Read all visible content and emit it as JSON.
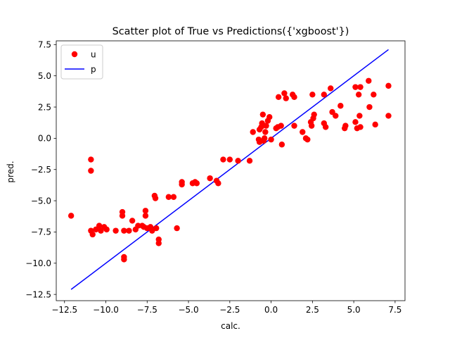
{
  "chart_data": {
    "type": "scatter",
    "title": "Scatter plot of True vs Predictions({'xgboost'})",
    "xlabel": "calc.",
    "ylabel": "pred.",
    "xlim": [
      -13.0,
      8.1
    ],
    "ylim": [
      -13.0,
      7.8
    ],
    "xticks": [
      -12.5,
      -10.0,
      -7.5,
      -5.0,
      -2.5,
      0.0,
      2.5,
      5.0,
      7.5
    ],
    "xtick_labels": [
      "−12.5",
      "−10.0",
      "−7.5",
      "−5.0",
      "−2.5",
      "0.0",
      "2.5",
      "5.0",
      "7.5"
    ],
    "yticks": [
      -12.5,
      -10.0,
      -7.5,
      -5.0,
      -2.5,
      0.0,
      2.5,
      5.0,
      7.5
    ],
    "ytick_labels": [
      "−12.5",
      "−10.0",
      "−7.5",
      "−5.0",
      "−2.5",
      "0.0",
      "2.5",
      "5.0",
      "7.5"
    ],
    "grid": false,
    "legend_position": "upper-left",
    "series": [
      {
        "name": "u",
        "kind": "scatter",
        "color": "#ff0000",
        "points": [
          [
            -12.1,
            -6.2
          ],
          [
            -10.9,
            -1.7
          ],
          [
            -10.9,
            -2.6
          ],
          [
            -10.9,
            -7.4
          ],
          [
            -10.8,
            -7.7
          ],
          [
            -10.6,
            -7.3
          ],
          [
            -10.4,
            -7.0
          ],
          [
            -10.3,
            -7.4
          ],
          [
            -10.1,
            -7.1
          ],
          [
            -9.95,
            -7.3
          ],
          [
            -9.4,
            -7.4
          ],
          [
            -9.0,
            -5.9
          ],
          [
            -9.0,
            -6.2
          ],
          [
            -8.9,
            -7.4
          ],
          [
            -8.9,
            -9.5
          ],
          [
            -8.9,
            -9.7
          ],
          [
            -8.6,
            -7.4
          ],
          [
            -8.4,
            -6.6
          ],
          [
            -8.2,
            -7.3
          ],
          [
            -8.05,
            -7.0
          ],
          [
            -7.8,
            -7.0
          ],
          [
            -7.7,
            -7.1
          ],
          [
            -7.6,
            -5.8
          ],
          [
            -7.6,
            -6.2
          ],
          [
            -7.5,
            -7.2
          ],
          [
            -7.3,
            -7.1
          ],
          [
            -7.2,
            -7.4
          ],
          [
            -7.05,
            -4.6
          ],
          [
            -7.0,
            -4.8
          ],
          [
            -6.95,
            -7.2
          ],
          [
            -6.8,
            -8.1
          ],
          [
            -6.8,
            -8.4
          ],
          [
            -6.2,
            -4.7
          ],
          [
            -5.9,
            -4.7
          ],
          [
            -5.7,
            -7.2
          ],
          [
            -5.4,
            -3.5
          ],
          [
            -5.4,
            -3.7
          ],
          [
            -4.75,
            -3.6
          ],
          [
            -4.6,
            -3.5
          ],
          [
            -4.5,
            -3.6
          ],
          [
            -3.7,
            -3.2
          ],
          [
            -3.3,
            -3.4
          ],
          [
            -3.2,
            -3.6
          ],
          [
            -2.9,
            -1.7
          ],
          [
            -2.5,
            -1.7
          ],
          [
            -2.0,
            -1.8
          ],
          [
            -1.3,
            -1.8
          ],
          [
            -1.1,
            0.5
          ],
          [
            -0.75,
            -0.1
          ],
          [
            -0.7,
            -0.3
          ],
          [
            -0.7,
            0.7
          ],
          [
            -0.6,
            0.9
          ],
          [
            -0.55,
            1.2
          ],
          [
            -0.5,
            1.9
          ],
          [
            -0.45,
            -0.2
          ],
          [
            -0.4,
            0.0
          ],
          [
            -0.35,
            0.5
          ],
          [
            -0.3,
            1.0
          ],
          [
            -0.2,
            1.4
          ],
          [
            -0.1,
            1.7
          ],
          [
            0.0,
            -0.1
          ],
          [
            0.3,
            0.8
          ],
          [
            0.4,
            0.9
          ],
          [
            0.45,
            3.3
          ],
          [
            0.6,
            1.0
          ],
          [
            0.65,
            -0.5
          ],
          [
            0.8,
            3.6
          ],
          [
            0.9,
            3.2
          ],
          [
            1.3,
            3.5
          ],
          [
            1.4,
            3.3
          ],
          [
            1.4,
            1.0
          ],
          [
            1.9,
            0.5
          ],
          [
            2.1,
            0.0
          ],
          [
            2.2,
            -0.1
          ],
          [
            2.4,
            1.3
          ],
          [
            2.45,
            1.0
          ],
          [
            2.5,
            3.5
          ],
          [
            2.55,
            1.6
          ],
          [
            2.6,
            1.9
          ],
          [
            3.2,
            3.5
          ],
          [
            3.2,
            1.2
          ],
          [
            3.3,
            0.9
          ],
          [
            3.6,
            4.0
          ],
          [
            3.7,
            2.1
          ],
          [
            3.9,
            1.8
          ],
          [
            4.2,
            2.6
          ],
          [
            4.45,
            0.8
          ],
          [
            4.5,
            1.0
          ],
          [
            5.1,
            4.1
          ],
          [
            5.1,
            1.3
          ],
          [
            5.2,
            0.8
          ],
          [
            5.3,
            3.5
          ],
          [
            5.35,
            1.8
          ],
          [
            5.4,
            4.1
          ],
          [
            5.4,
            0.9
          ],
          [
            5.9,
            4.6
          ],
          [
            5.95,
            2.5
          ],
          [
            6.2,
            3.5
          ],
          [
            6.3,
            1.1
          ],
          [
            7.1,
            4.2
          ],
          [
            7.1,
            1.8
          ]
        ]
      },
      {
        "name": "p",
        "kind": "line",
        "color": "#0000ff",
        "points": [
          [
            -12.1,
            -12.1
          ],
          [
            7.1,
            7.1
          ]
        ]
      }
    ]
  }
}
